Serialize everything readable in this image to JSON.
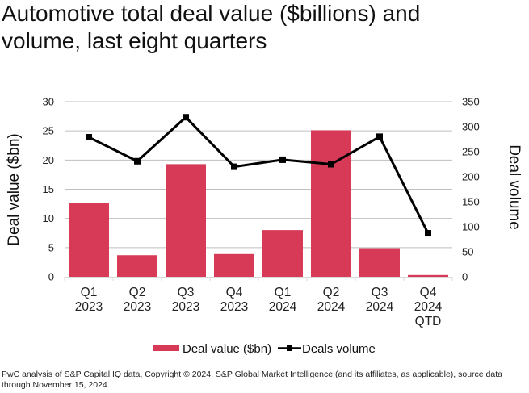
{
  "title_lines": [
    "Automotive total deal value ($billions) and",
    "volume, last eight quarters"
  ],
  "footer": "PwC analysis of S&P Capital IQ data, Copyright © 2024, S&P Global Market Intelligence (and its affiliates, as applicable), source data through November 15, 2024.",
  "colors": {
    "bar": "#d63a57",
    "line": "#000000",
    "grid": "#bfbfbf"
  },
  "chart_data": {
    "type": "bar+line",
    "title": "Automotive total deal value ($billions) and volume, last eight quarters",
    "categories": [
      [
        "Q1",
        "2023"
      ],
      [
        "Q2",
        "2023"
      ],
      [
        "Q3",
        "2023"
      ],
      [
        "Q4",
        "2023"
      ],
      [
        "Q1",
        "2024"
      ],
      [
        "Q2",
        "2024"
      ],
      [
        "Q3",
        "2024"
      ],
      [
        "Q4",
        "2024",
        "QTD"
      ]
    ],
    "series": [
      {
        "name": "Deal value ($bn)",
        "type": "bar",
        "axis": "left",
        "values": [
          12.7,
          3.7,
          19.3,
          3.9,
          8.0,
          25.1,
          4.9,
          0.3
        ]
      },
      {
        "name": "Deals volume",
        "type": "line",
        "axis": "right",
        "values": [
          279,
          231,
          319,
          220,
          234,
          225,
          280,
          87
        ]
      }
    ],
    "ylabel": "Deal value ($bn)",
    "y2label": "Deal volume",
    "ylim": [
      0,
      30
    ],
    "yticks": [
      0,
      5,
      10,
      15,
      20,
      25,
      30
    ],
    "y2lim": [
      0,
      350
    ],
    "y2ticks": [
      0,
      50,
      100,
      150,
      200,
      250,
      300,
      350
    ],
    "grid": true,
    "legend_position": "bottom"
  }
}
